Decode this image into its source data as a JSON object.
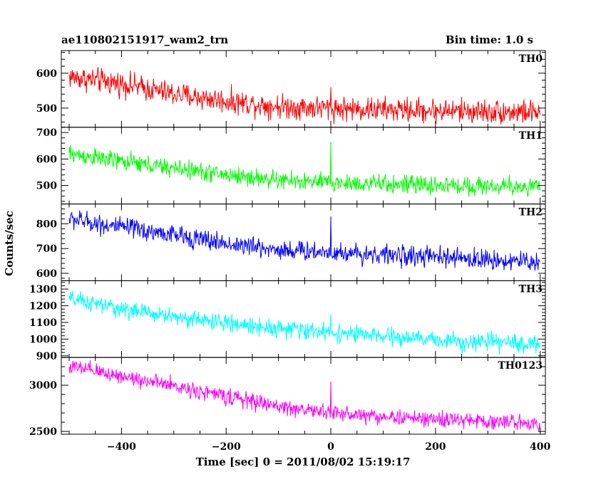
{
  "header": {
    "title": "ae110802151917_wam2_trn",
    "bin_time": "Bin time: 1.0 s"
  },
  "chart_data": {
    "type": "line",
    "xlabel": "Time [sec] 0 = 2011/08/02 15:19:17",
    "ylabel": "Counts/sec",
    "xlim": [
      -515,
      410
    ],
    "x_ticks": [
      -400,
      -200,
      0,
      200,
      400
    ],
    "x_tick_labels": [
      "−400",
      "−200",
      "0",
      "200",
      "400"
    ],
    "x_start": -500,
    "x_end": 400,
    "bin_seconds": 1,
    "panels": [
      {
        "name": "TH0",
        "color": "#ff0000",
        "ylim": [
          445,
          665
        ],
        "yticks": [
          500,
          600
        ],
        "trend": [
          [
            -500,
            590
          ],
          [
            -400,
            570
          ],
          [
            -300,
            540
          ],
          [
            -200,
            520
          ],
          [
            -100,
            505
          ],
          [
            0,
            500
          ],
          [
            100,
            495
          ],
          [
            200,
            493
          ],
          [
            300,
            490
          ],
          [
            400,
            488
          ]
        ],
        "noise_amplitude": 30,
        "spike": {
          "x": 0,
          "value": 560
        }
      },
      {
        "name": "TH1",
        "color": "#00ff00",
        "ylim": [
          430,
          720
        ],
        "yticks": [
          500,
          600,
          700
        ],
        "trend": [
          [
            -500,
            620
          ],
          [
            -400,
            590
          ],
          [
            -300,
            565
          ],
          [
            -200,
            540
          ],
          [
            -100,
            520
          ],
          [
            0,
            510
          ],
          [
            100,
            505
          ],
          [
            200,
            500
          ],
          [
            300,
            497
          ],
          [
            400,
            495
          ]
        ],
        "noise_amplitude": 30,
        "spike": {
          "x": 0,
          "value": 665
        }
      },
      {
        "name": "TH2",
        "color": "#0000ff",
        "ylim": [
          570,
          880
        ],
        "yticks": [
          600,
          700,
          800
        ],
        "trend": [
          [
            -500,
            820
          ],
          [
            -400,
            785
          ],
          [
            -300,
            755
          ],
          [
            -200,
            720
          ],
          [
            -100,
            695
          ],
          [
            0,
            685
          ],
          [
            100,
            675
          ],
          [
            200,
            665
          ],
          [
            300,
            655
          ],
          [
            400,
            645
          ]
        ],
        "noise_amplitude": 35,
        "spike": {
          "x": 0,
          "value": 830
        }
      },
      {
        "name": "TH3",
        "color": "#00ffff",
        "ylim": [
          890,
          1350
        ],
        "yticks": [
          900,
          1000,
          1100,
          1200,
          1300
        ],
        "trend": [
          [
            -500,
            1240
          ],
          [
            -400,
            1180
          ],
          [
            -300,
            1135
          ],
          [
            -200,
            1095
          ],
          [
            -100,
            1065
          ],
          [
            0,
            1040
          ],
          [
            100,
            1015
          ],
          [
            200,
            995
          ],
          [
            300,
            980
          ],
          [
            400,
            970
          ]
        ],
        "noise_amplitude": 45,
        "spike": {
          "x": 0,
          "value": 1150
        }
      },
      {
        "name": "TH0123",
        "color": "#ff00ff",
        "ylim": [
          2470,
          3300
        ],
        "yticks": [
          2500,
          3000
        ],
        "trend": [
          [
            -500,
            3200
          ],
          [
            -400,
            3100
          ],
          [
            -300,
            2990
          ],
          [
            -200,
            2880
          ],
          [
            -100,
            2770
          ],
          [
            0,
            2700
          ],
          [
            100,
            2660
          ],
          [
            200,
            2630
          ],
          [
            300,
            2610
          ],
          [
            400,
            2590
          ]
        ],
        "noise_amplitude": 75,
        "spike": {
          "x": 0,
          "value": 3040
        }
      }
    ]
  }
}
